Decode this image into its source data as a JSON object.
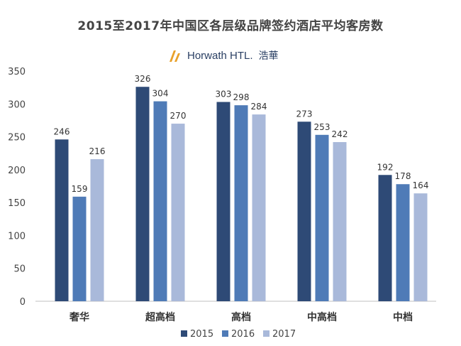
{
  "title": "2015至2017年中国区各层级品牌签约酒店平均客房数",
  "brand": {
    "name": "Horwath HTL.",
    "cn": "浩華"
  },
  "chart_data": {
    "type": "bar",
    "categories": [
      "奢华",
      "超高档",
      "高档",
      "中高档",
      "中档"
    ],
    "series": [
      {
        "name": "2015",
        "values": [
          246,
          326,
          303,
          273,
          192
        ],
        "color": "#2e4a76"
      },
      {
        "name": "2016",
        "values": [
          159,
          304,
          298,
          253,
          178
        ],
        "color": "#4f7bb7"
      },
      {
        "name": "2017",
        "values": [
          216,
          270,
          284,
          242,
          164
        ],
        "color": "#a9b9da"
      }
    ],
    "ylim": [
      0,
      350
    ],
    "yticks": [
      0,
      50,
      100,
      150,
      200,
      250,
      300,
      350
    ],
    "grid": false,
    "legend": "bottom",
    "xlabel": "",
    "ylabel": ""
  }
}
